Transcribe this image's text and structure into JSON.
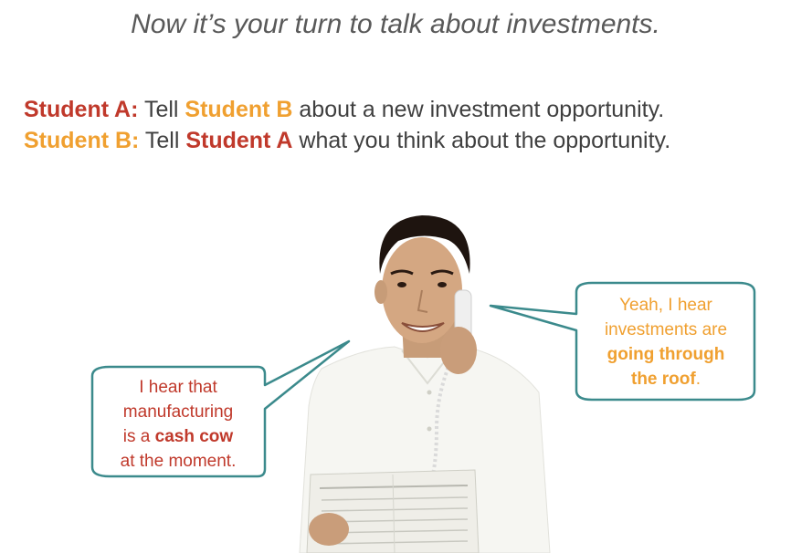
{
  "title": "Now it’s your turn to talk about investments.",
  "instructions": {
    "line_a": {
      "role": "Student A:",
      "verb": " Tell ",
      "target": "Student B",
      "rest": " about a new investment opportunity."
    },
    "line_b": {
      "role": "Student B:",
      "verb": " Tell ",
      "target": "Student A",
      "rest": " what you think about the opportunity."
    }
  },
  "bubble_left": {
    "line1": "I hear that",
    "line2": "manufacturing",
    "line3_pre": "is a ",
    "line3_bold": "cash cow",
    "line4": "at the moment."
  },
  "bubble_right": {
    "line1": "Yeah, I hear",
    "line2": "investments are",
    "line3_bold": "going through",
    "line4_bold": "the roof",
    "line4_post": "."
  },
  "colors": {
    "student_a": "#c0392b",
    "student_b": "#f0a030",
    "bubble_border": "#3b8a8c",
    "text": "#404040"
  },
  "illustration": "man-on-phone-reading-newspaper"
}
